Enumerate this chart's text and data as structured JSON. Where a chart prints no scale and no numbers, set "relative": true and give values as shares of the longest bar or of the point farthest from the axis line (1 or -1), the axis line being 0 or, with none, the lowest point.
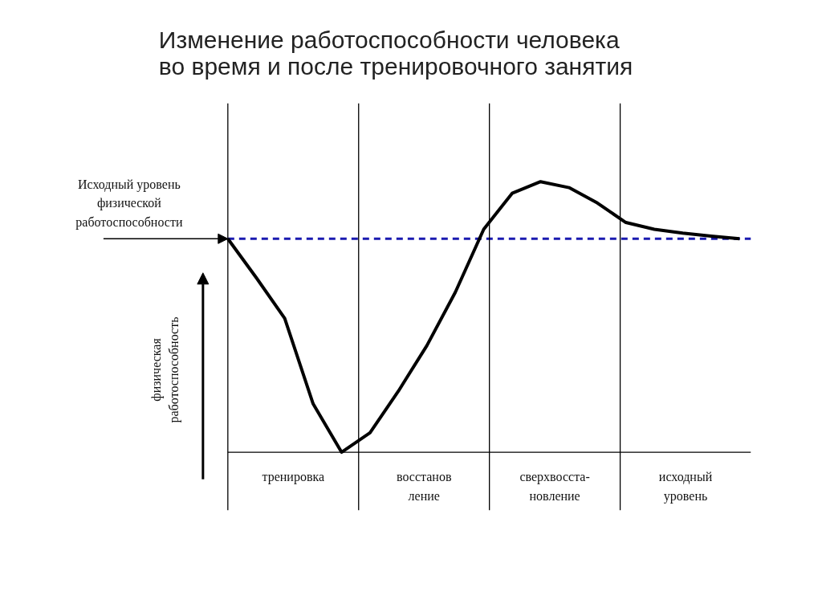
{
  "chart_data": {
    "type": "line",
    "title": "Изменение работоспособности человека\nво время и после тренировочного занятия",
    "ylabel": "физическая\nработоспособность",
    "relative": true,
    "categories": [
      null,
      null,
      null,
      null,
      null,
      null,
      null,
      null,
      null,
      null,
      null,
      null,
      null,
      null,
      null,
      null,
      null,
      null,
      null
    ],
    "series": [
      {
        "color": "#000000",
        "values": [
          0.789,
          0.645,
          0.495,
          0.179,
          0,
          0.072,
          0.226,
          0.394,
          0.591,
          0.824,
          0.957,
          1,
          0.978,
          0.921,
          0.849,
          0.824,
          0.81,
          0.799,
          0.789
        ]
      }
    ],
    "ref_lines": [
      {
        "axis": "y",
        "value": 0.789,
        "color": "#1a1ab0",
        "line_style": "dashed",
        "label": "Исходный уровень\nфизической\nработоспособности"
      }
    ],
    "annotations": [
      "тренировка",
      "восстанов\nление",
      "сверхвосста-\nновление",
      "исходный\nуровень"
    ],
    "grid": false,
    "marker": "none",
    "line_style": "solid"
  }
}
